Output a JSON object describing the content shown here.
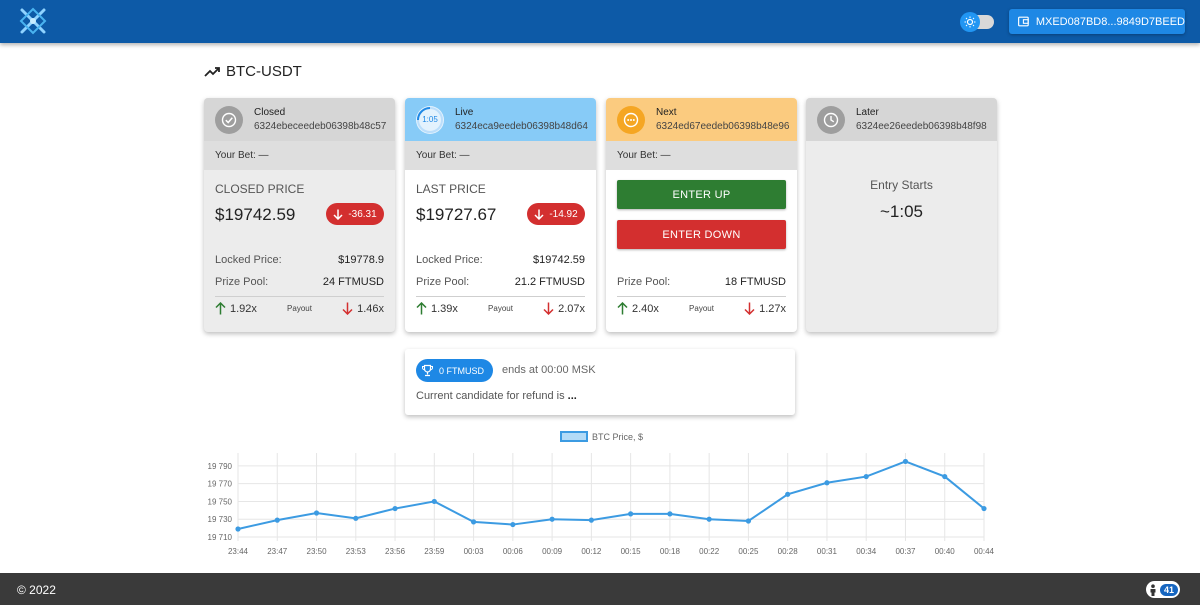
{
  "header": {
    "wallet": "MXED087BD8...9849D7BEED",
    "colors": {
      "bar": "#0d5aa7",
      "wallet_button": "#1e88e5"
    }
  },
  "pair": {
    "title": "BTC-USDT"
  },
  "cards": {
    "closed": {
      "status": "Closed",
      "id": "6324ebeceedeb06398b48c57",
      "your_bet": "Your Bet: —",
      "price_label": "CLOSED PRICE",
      "price": "$19742.59",
      "delta": "-36.31",
      "locked_label": "Locked Price:",
      "locked_value": "$19778.9",
      "pool_label": "Prize Pool:",
      "pool_value": "24 FTMUSD",
      "up_mult": "1.92x",
      "payout_label": "Payout",
      "down_mult": "1.46x"
    },
    "live": {
      "status": "Live",
      "timer": "1:05",
      "id": "6324eca9eedeb06398b48d64",
      "your_bet": "Your Bet: —",
      "price_label": "LAST PRICE",
      "price": "$19727.67",
      "delta": "-14.92",
      "locked_label": "Locked Price:",
      "locked_value": "$19742.59",
      "pool_label": "Prize Pool:",
      "pool_value": "21.2 FTMUSD",
      "up_mult": "1.39x",
      "payout_label": "Payout",
      "down_mult": "2.07x"
    },
    "next": {
      "status": "Next",
      "id": "6324ed67eedeb06398b48e96",
      "your_bet": "Your Bet: —",
      "enter_up": "ENTER UP",
      "enter_down": "ENTER DOWN",
      "pool_label": "Prize Pool:",
      "pool_value": "18 FTMUSD",
      "up_mult": "2.40x",
      "payout_label": "Payout",
      "down_mult": "1.27x"
    },
    "later": {
      "status": "Later",
      "id": "6324ee26eedeb06398b48f98",
      "entry_label": "Entry Starts",
      "entry_value": "~1:05"
    }
  },
  "refund": {
    "pool": "0 FTMUSD",
    "ends": "ends at 00:00 MSK",
    "candidate": "Current candidate for refund is",
    "candidate_value": "..."
  },
  "chart_data": {
    "type": "line",
    "legend": "BTC Price, $",
    "color": "#3c9be2",
    "x": [
      "23:44",
      "23:47",
      "23:50",
      "23:53",
      "23:56",
      "23:59",
      "00:03",
      "00:06",
      "00:09",
      "00:12",
      "00:15",
      "00:18",
      "00:22",
      "00:25",
      "00:28",
      "00:31",
      "00:34",
      "00:37",
      "00:40",
      "00:44"
    ],
    "series": [
      {
        "name": "BTC Price, $",
        "values": [
          19719,
          19729,
          19737,
          19731,
          19742,
          19750,
          19727,
          19724,
          19730,
          19729,
          19736,
          19736,
          19730,
          19728,
          19758,
          19771,
          19778,
          19795,
          19778,
          19742
        ]
      }
    ],
    "yticks": [
      19710,
      19730,
      19750,
      19770,
      19790
    ],
    "ytick_labels": [
      "19 710",
      "19 730",
      "19 750",
      "19 770",
      "19 790"
    ],
    "ylim": [
      19710,
      19800
    ],
    "grid": true,
    "legend_position": "top-center"
  },
  "footer": {
    "copyright": "© 2022",
    "online": "41"
  }
}
